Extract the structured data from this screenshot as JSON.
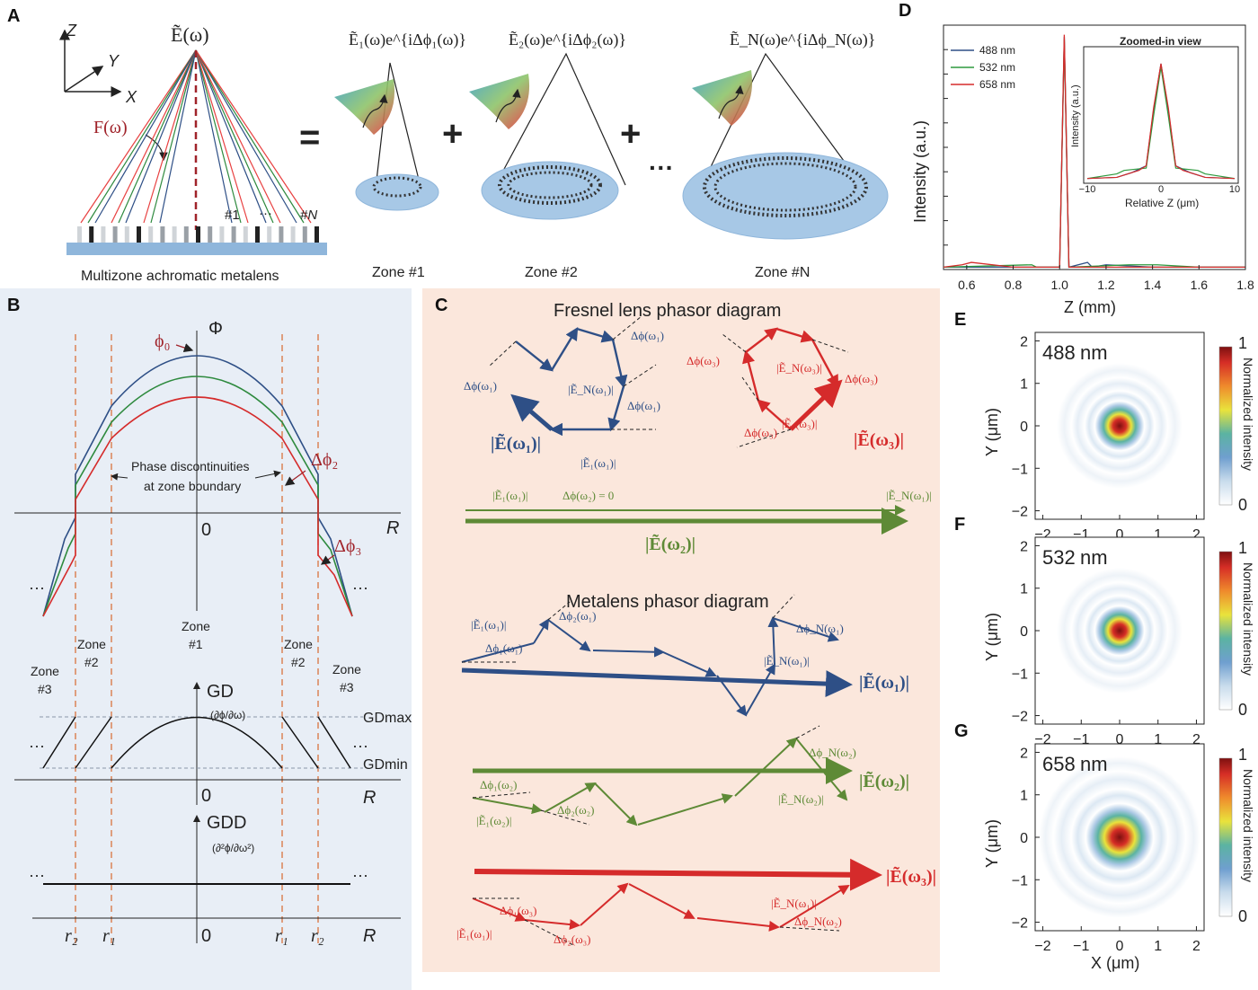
{
  "panelA": {
    "letter": "A",
    "field_label": "Ẽ(ω)",
    "focal_label": "F(ω)",
    "axis_z": "Z",
    "axis_y": "Y",
    "axis_x": "X",
    "zone_first": "#1",
    "zone_dots": "···",
    "zone_last": "#N",
    "metalens_caption": "Multizone achromatic metalens",
    "equals": "=",
    "plus": "+",
    "ellipsis": "···",
    "term1": "Ẽ₁(ω)e^{iΔϕ₁(ω)}",
    "term2": "Ẽ₂(ω)e^{iΔϕ₂(ω)}",
    "termN": "Ẽ_N(ω)e^{iΔϕ_N(ω)}",
    "zone1": "Zone #1",
    "zone2": "Zone #2",
    "zoneN": "Zone #N"
  },
  "panelB": {
    "letter": "B",
    "phi_axis": "Φ",
    "phi0": "ϕ₀",
    "dphi2": "Δϕ₂",
    "dphi3": "Δϕ₃",
    "discontinuity_line1": "Phase discontinuities",
    "discontinuity_line2": "at zone boundary",
    "r_axis": "R",
    "zero": "0",
    "dots": "···",
    "zone_word": "Zone",
    "zone1_num": "#1",
    "zone2_num": "#2",
    "zone3_num": "#3",
    "gd": "GD",
    "gd_formula": "(∂ϕ/∂ω)",
    "gd_max": "GDmax",
    "gd_min": "GDmin",
    "gdd": "GDD",
    "gdd_formula": "(∂²ϕ/∂ω²)",
    "r1": "r₁",
    "r2": "r₂"
  },
  "panelC": {
    "letter": "C",
    "fresnel_title": "Fresnel lens phasor diagram",
    "metalens_title": "Metalens phasor diagram",
    "dphi_w1": "Δϕ(ω₁)",
    "dphi_w3": "Δϕ(ω₃)",
    "dphi_w2_zero": "Δϕ(ω₂) = 0",
    "EN_w1": "|Ẽ_N(ω₁)|",
    "EN_w3": "|Ẽ_N(ω₃)|",
    "E1_w1": "|Ẽ₁(ω₁)|",
    "E1_w3": "|Ẽ₁(ω₃)|",
    "E1_w2": "|Ẽ₁(ω₂)|",
    "EN_w2": "|Ẽ_N(ω₂)|",
    "Etot_w1": "|Ẽ(ω₁)|",
    "Etot_w2": "|Ẽ(ω₂)|",
    "Etot_w3": "|Ẽ(ω₃)|",
    "m_dphi1_w1": "Δϕ₁(ω₁)",
    "m_dphi2_w1": "Δϕ₂(ω₁)",
    "m_dphiN_w1": "Δϕ_N(ω₁)",
    "m_dphi1_w2": "Δϕ₁(ω₂)",
    "m_dphi2_w2": "Δϕ₂(ω₂)",
    "m_dphiN_w2": "Δϕ_N(ω₂)",
    "m_dphi1_w3": "Δϕ₁(ω₃)",
    "m_dphi2_w3": "Δϕ₂(ω₃)"
  },
  "panelD": {
    "letter": "D",
    "ylabel": "Intensity (a.u.)",
    "xlabel": "Z (mm)",
    "inset_title": "Zoomed-in view",
    "inset_ylabel": "Intensity (a.u.)",
    "inset_xlabel": "Relative Z (μm)",
    "legend": [
      "488 nm",
      "532 nm",
      "658 nm"
    ]
  },
  "panelsEFG": {
    "letters": [
      "E",
      "F",
      "G"
    ],
    "wavelengths": [
      "488",
      "532",
      "658"
    ],
    "unit": "nm",
    "ylabel": "Y (μm)",
    "xlabel": "X (μm)",
    "colorbar_label": "Normalized intensity",
    "cb_max": "1",
    "cb_min": "0"
  },
  "colors": {
    "blue": "#2e4f86",
    "green": "#5e8a36",
    "red": "#d52b2b",
    "panelB_bg": "#e8eef6",
    "panelC_bg": "#fbe7dc",
    "dashed_orange": "#d9733d",
    "dark_red_text": "#a0232a"
  },
  "chart_data": [
    {
      "type": "line",
      "title": "",
      "xlabel": "Z (mm)",
      "ylabel": "Intensity (a.u.)",
      "xlim": [
        0.5,
        1.8
      ],
      "ylim": [
        0,
        1.0
      ],
      "x_ticks": [
        "0.6",
        "0.8",
        "1.0",
        "1.2",
        "1.4",
        "1.6",
        "1.8"
      ],
      "series": [
        {
          "name": "488 nm",
          "x": [
            0.5,
            0.9,
            1.0,
            1.02,
            1.04,
            1.12,
            1.14,
            1.2,
            1.4,
            1.6,
            1.8
          ],
          "y": [
            0.01,
            0.01,
            0.01,
            0.98,
            0.01,
            0.03,
            0.01,
            0.02,
            0.01,
            0.01,
            0.01
          ]
        },
        {
          "name": "532 nm",
          "x": [
            0.5,
            0.88,
            0.9,
            1.0,
            1.02,
            1.04,
            1.3,
            1.42,
            1.6,
            1.8
          ],
          "y": [
            0.01,
            0.02,
            0.01,
            0.01,
            0.97,
            0.01,
            0.02,
            0.02,
            0.01,
            0.01
          ]
        },
        {
          "name": "658 nm",
          "x": [
            0.5,
            0.58,
            0.62,
            0.8,
            1.0,
            1.02,
            1.04,
            1.3,
            1.6,
            1.8
          ],
          "y": [
            0.01,
            0.02,
            0.03,
            0.01,
            0.01,
            0.99,
            0.01,
            0.01,
            0.01,
            0.01
          ]
        }
      ]
    },
    {
      "type": "line",
      "title": "Zoomed-in view",
      "xlabel": "Relative Z (μm)",
      "ylabel": "Intensity (a.u.)",
      "xlim": [
        -10,
        10
      ],
      "ylim": [
        0,
        1.1
      ],
      "x_ticks": [
        "−10",
        "0",
        "10"
      ],
      "series": [
        {
          "name": "488 nm",
          "x": [
            -10,
            -6,
            -4,
            -2,
            -1,
            0,
            1,
            2,
            4,
            6,
            10
          ],
          "y": [
            0.01,
            0.02,
            0.06,
            0.12,
            0.6,
            1.0,
            0.6,
            0.12,
            0.06,
            0.02,
            0.01
          ]
        },
        {
          "name": "532 nm",
          "x": [
            -10,
            -6,
            -5,
            -2,
            -1,
            0,
            1,
            2,
            5,
            6,
            10
          ],
          "y": [
            0.01,
            0.05,
            0.08,
            0.1,
            0.55,
            0.97,
            0.55,
            0.1,
            0.08,
            0.05,
            0.01
          ]
        },
        {
          "name": "658 nm",
          "x": [
            -10,
            -6,
            -3,
            -2,
            -1,
            0,
            1,
            2,
            3,
            6,
            10
          ],
          "y": [
            0.01,
            0.02,
            0.08,
            0.12,
            0.62,
            1.0,
            0.62,
            0.12,
            0.08,
            0.02,
            0.01
          ]
        }
      ]
    },
    {
      "type": "heatmap",
      "title": "488 nm",
      "xlabel": "X (μm)",
      "ylabel": "Y (μm)",
      "xlim": [
        -2.2,
        2.2
      ],
      "ylim": [
        -2.2,
        2.2
      ],
      "x_ticks": [
        "−2",
        "−1",
        "0",
        "1",
        "2"
      ],
      "y_ticks": [
        "2",
        "1",
        "0",
        "−1",
        "−2"
      ],
      "colorbar": {
        "label": "Normalized intensity",
        "range": [
          0,
          1
        ]
      },
      "spot_fwhm_um": 0.28
    },
    {
      "type": "heatmap",
      "title": "532 nm",
      "xlabel": "X (μm)",
      "ylabel": "Y (μm)",
      "xlim": [
        -2.2,
        2.2
      ],
      "ylim": [
        -2.2,
        2.2
      ],
      "x_ticks": [
        "−2",
        "−1",
        "0",
        "1",
        "2"
      ],
      "y_ticks": [
        "2",
        "1",
        "0",
        "−1",
        "−2"
      ],
      "colorbar": {
        "label": "Normalized intensity",
        "range": [
          0,
          1
        ]
      },
      "spot_fwhm_um": 0.31
    },
    {
      "type": "heatmap",
      "title": "658 nm",
      "xlabel": "X (μm)",
      "ylabel": "Y (μm)",
      "xlim": [
        -2.2,
        2.2
      ],
      "ylim": [
        -2.2,
        2.2
      ],
      "x_ticks": [
        "−2",
        "−1",
        "0",
        "1",
        "2"
      ],
      "y_ticks": [
        "2",
        "1",
        "0",
        "−1",
        "−2"
      ],
      "colorbar": {
        "label": "Normalized intensity",
        "range": [
          0,
          1
        ]
      },
      "spot_fwhm_um": 0.38
    }
  ]
}
